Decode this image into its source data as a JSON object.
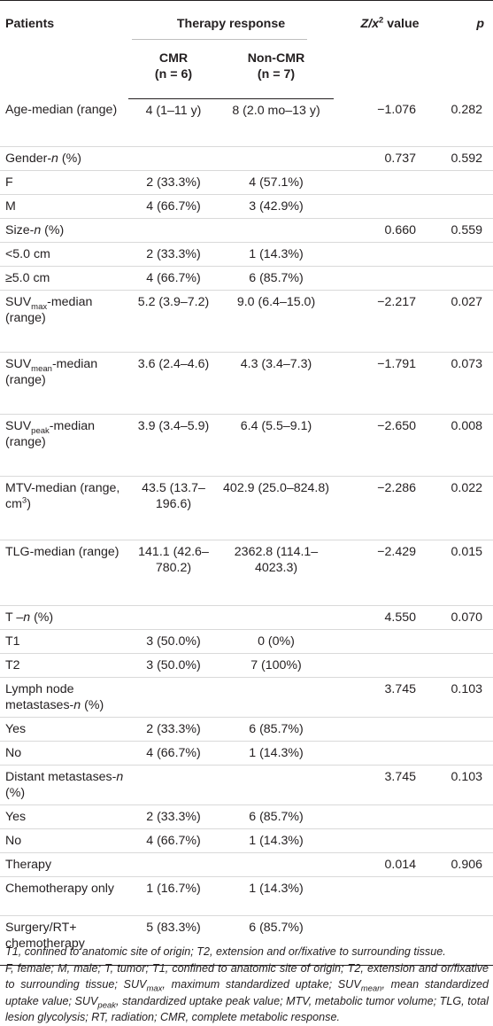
{
  "header": {
    "patients": "Patients",
    "therapy_response": "Therapy response",
    "zx2_value": "Z/x",
    "zx2_sup": "2",
    "zx2_tail": " value",
    "p": "p",
    "cmr_label": "CMR",
    "cmr_n": "(n = 6)",
    "noncmr_label": "Non-CMR",
    "noncmr_n": "(n = 7)"
  },
  "rows": [
    {
      "h": 54,
      "c1": "Age-median (range)",
      "c2": "4 (1–11 y)",
      "c3": "8 (2.0 mo–13 y)",
      "c4": "−1.076",
      "c5": "0.282"
    },
    {
      "h": 26,
      "c1": "Gender-n (%)",
      "c2": "",
      "c3": "",
      "c4": "0.737",
      "c5": "0.592"
    },
    {
      "h": 26,
      "c1": "F",
      "c2": "2 (33.3%)",
      "c3": "4 (57.1%)",
      "c4": "",
      "c5": ""
    },
    {
      "h": 26,
      "c1": "M",
      "c2": "4 (66.7%)",
      "c3": "3 (42.9%)",
      "c4": "",
      "c5": ""
    },
    {
      "h": 26,
      "c1": "Size-n (%)",
      "c2": "",
      "c3": "",
      "c4": "0.660",
      "c5": "0.559"
    },
    {
      "h": 26,
      "c1": "<5.0 cm",
      "c2": "2 (33.3%)",
      "c3": "1 (14.3%)",
      "c4": "",
      "c5": ""
    },
    {
      "h": 26,
      "c1": "≥5.0 cm",
      "c2": "4 (66.7%)",
      "c3": "6 (85.7%)",
      "c4": "",
      "c5": ""
    },
    {
      "h": 70,
      "c1": "SUVmax-median (range)",
      "c2": "5.2 (3.9–7.2)",
      "c3": "9.0 (6.4–15.0)",
      "c4": "−2.217",
      "c5": "0.027"
    },
    {
      "h": 70,
      "c1": "SUVmean-median (range)",
      "c2": "3.6 (2.4–4.6)",
      "c3": "4.3 (3.4–7.3)",
      "c4": "−1.791",
      "c5": "0.073"
    },
    {
      "h": 70,
      "c1": "SUVpeak-median (range)",
      "c2": "3.9 (3.4–5.9)",
      "c3": "6.4 (5.5–9.1)",
      "c4": "−2.650",
      "c5": "0.008"
    },
    {
      "h": 72,
      "c1": "MTV-median (range, cm3)",
      "c2": "43.5 (13.7–196.6)",
      "c3": "402.9 (25.0–824.8)",
      "c4": "−2.286",
      "c5": "0.022"
    },
    {
      "h": 74,
      "c1": "TLG-median (range)",
      "c2": "141.1 (42.6–780.2)",
      "c3": "2362.8 (114.1–4023.3)",
      "c4": "−2.429",
      "c5": "0.015"
    },
    {
      "h": 26,
      "c1": "T –n (%)",
      "c2": "",
      "c3": "",
      "c4": "4.550",
      "c5": "0.070"
    },
    {
      "h": 26,
      "c1": "T1",
      "c2": "3 (50.0%)",
      "c3": "0 (0%)",
      "c4": "",
      "c5": ""
    },
    {
      "h": 26,
      "c1": "T2",
      "c2": "3 (50.0%)",
      "c3": "7 (100%)",
      "c4": "",
      "c5": ""
    },
    {
      "h": 26,
      "c1": "Lymph node metastases-n (%)",
      "c2": "",
      "c3": "",
      "c4": "3.745",
      "c5": "0.103"
    },
    {
      "h": 26,
      "c1": "Yes",
      "c2": "2 (33.3%)",
      "c3": "6 (85.7%)",
      "c4": "",
      "c5": ""
    },
    {
      "h": 26,
      "c1": "No",
      "c2": "4 (66.7%)",
      "c3": "1 (14.3%)",
      "c4": "",
      "c5": ""
    },
    {
      "h": 26,
      "c1": "Distant metastases-n (%)",
      "c2": "",
      "c3": "",
      "c4": "3.745",
      "c5": "0.103"
    },
    {
      "h": 26,
      "c1": "Yes",
      "c2": "2 (33.3%)",
      "c3": "6 (85.7%)",
      "c4": "",
      "c5": ""
    },
    {
      "h": 26,
      "c1": "No",
      "c2": "4 (66.7%)",
      "c3": "1 (14.3%)",
      "c4": "",
      "c5": ""
    },
    {
      "h": 26,
      "c1": "Therapy",
      "c2": "",
      "c3": "",
      "c4": "0.014",
      "c5": "0.906"
    },
    {
      "h": 44,
      "c1": "Chemotherapy only",
      "c2": "1 (16.7%)",
      "c3": "1 (14.3%)",
      "c4": "",
      "c5": ""
    },
    {
      "h": 56,
      "c1": "Surgery/RT+ chemotherapy",
      "c2": "5 (83.3%)",
      "c3": "6 (85.7%)",
      "c4": "",
      "c5": ""
    }
  ],
  "footnotes": [
    "T1, confined to anatomic site of origin; T2, extension and or/fixative to surrounding tissue.",
    "F, female; M, male; T, tumor; T1, confined to anatomic site of origin; T2, extension and or/fixative to surrounding tissue; SUVmax, maximum standardized uptake; SUVmean, mean standardized uptake value; SUVpeak, standardized uptake peak value; MTV, metabolic tumor volume; TLG, total lesion glycolysis; RT, radiation; CMR, complete metabolic response."
  ]
}
